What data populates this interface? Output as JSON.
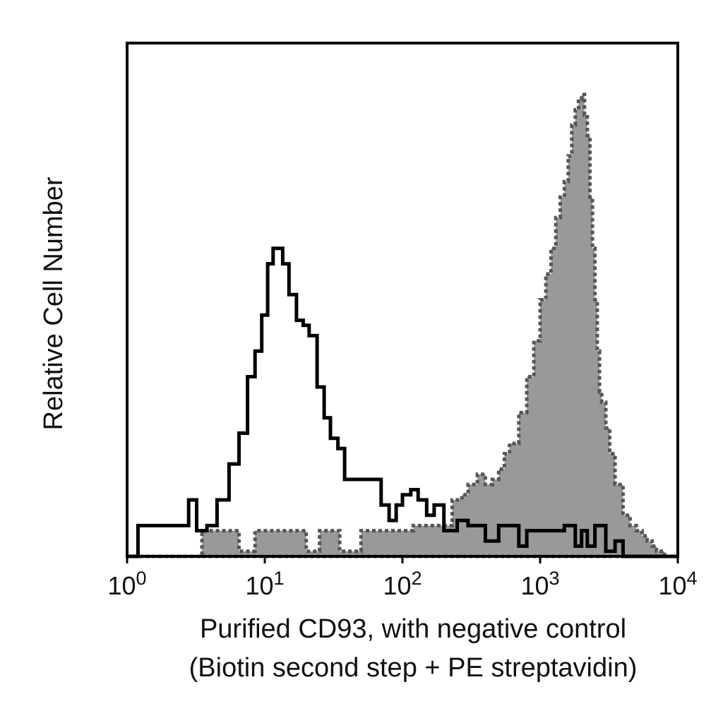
{
  "chart_data": {
    "type": "area",
    "x_scale": "log",
    "xlim": [
      1,
      10000
    ],
    "ylim": [
      0,
      100
    ],
    "grid": false,
    "legend": "none",
    "ylabel": "Relative Cell Number",
    "xlabel_lines": [
      "Purified CD93, with negative control",
      "(Biotin second step + PE streptavidin)"
    ],
    "xticks": [
      {
        "value": 1,
        "base": "10",
        "exp": "0"
      },
      {
        "value": 10,
        "base": "10",
        "exp": "1"
      },
      {
        "value": 100,
        "base": "10",
        "exp": "2"
      },
      {
        "value": 1000,
        "base": "10",
        "exp": "3"
      },
      {
        "value": 10000,
        "base": "10",
        "exp": "4"
      }
    ],
    "series": [
      {
        "style": "solid-outline",
        "color": "#000000",
        "x": [
          1,
          1.2,
          1.5,
          2.0,
          2.5,
          2.8,
          3.2,
          3.8,
          4.5,
          5.5,
          6.5,
          7.5,
          8.5,
          9.5,
          10.5,
          11.5,
          12.5,
          13.5,
          15,
          17,
          19,
          21,
          24,
          27,
          30,
          34,
          38,
          43,
          48,
          55,
          62,
          70,
          80,
          90,
          100,
          115,
          130,
          150,
          170,
          200,
          250,
          300,
          400,
          500,
          600,
          700,
          800,
          1000,
          1200,
          1500,
          1800,
          2000,
          2200,
          2500,
          3000,
          3500,
          4000,
          5000,
          7000,
          10000
        ],
        "values": [
          0,
          6,
          6,
          6,
          6,
          11,
          5,
          6,
          11,
          18,
          24,
          35,
          40,
          47,
          57,
          60,
          60,
          57,
          51,
          46,
          45,
          43,
          33,
          27,
          23,
          21,
          15,
          15,
          15,
          15,
          15,
          10,
          7,
          10,
          12,
          13,
          11,
          8,
          10,
          5,
          7,
          6,
          3,
          6,
          6,
          2,
          5,
          5,
          5,
          6,
          2,
          5,
          2,
          6,
          1,
          3,
          0,
          0,
          0,
          0
        ]
      },
      {
        "style": "gray-fill-dotted-outline",
        "fill": "#999999",
        "stroke": "#555555",
        "x": [
          1,
          3.4,
          3.5,
          5.0,
          6.5,
          8.0,
          8.5,
          10.0,
          12,
          14,
          16,
          20,
          25,
          30,
          35,
          40,
          50,
          60,
          70,
          80,
          100,
          120,
          150,
          180,
          200,
          230,
          270,
          300,
          350,
          400,
          450,
          500,
          550,
          600,
          700,
          800,
          900,
          1000,
          1100,
          1200,
          1300,
          1400,
          1500,
          1600,
          1700,
          1800,
          1900,
          2000,
          2100,
          2200,
          2300,
          2400,
          2500,
          2600,
          2700,
          2800,
          3000,
          3200,
          3500,
          4000,
          4500,
          5000,
          5500,
          6000,
          6500,
          7000,
          8000,
          10000
        ],
        "values": [
          0,
          0,
          5,
          5,
          1,
          1,
          5,
          5,
          5,
          5,
          5,
          1,
          5,
          5,
          1,
          1,
          5,
          5,
          5,
          5,
          5,
          6,
          6,
          6,
          6,
          11,
          12,
          14,
          16,
          14,
          15,
          17,
          20,
          22,
          28,
          35,
          42,
          50,
          55,
          60,
          66,
          70,
          73,
          78,
          84,
          87,
          89,
          90,
          86,
          82,
          70,
          60,
          50,
          40,
          32,
          30,
          25,
          20,
          14,
          8,
          6,
          5,
          4,
          3,
          2,
          1,
          0,
          0
        ]
      }
    ]
  }
}
